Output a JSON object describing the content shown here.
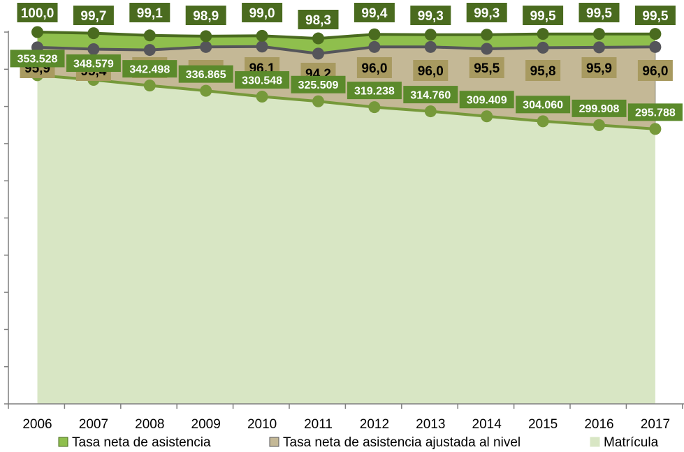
{
  "chart_data": {
    "type": "line",
    "categories": [
      "2006",
      "2007",
      "2008",
      "2009",
      "2010",
      "2011",
      "2012",
      "2013",
      "2014",
      "2015",
      "2016",
      "2017"
    ],
    "series": [
      {
        "name": "Tasa neta de asistencia",
        "axis": "right",
        "values": [
          100.0,
          99.7,
          99.1,
          98.9,
          99.0,
          98.3,
          99.4,
          99.3,
          99.3,
          99.5,
          99.5,
          99.5
        ],
        "labels": [
          "100,0",
          "99,7",
          "99,1",
          "98,9",
          "99,0",
          "98,3",
          "99,4",
          "99,3",
          "99,3",
          "99,5",
          "99,5",
          "99,5"
        ],
        "color": "#4a6b1f",
        "fill": "#8fbf4d",
        "label_bg": "#4a6b1f",
        "label_color": "#ffffff"
      },
      {
        "name": "Tasa neta de asistencia ajustada al nivel",
        "axis": "right",
        "values": [
          95.9,
          95.4,
          95.2,
          96.0,
          96.1,
          94.2,
          96.0,
          96.0,
          95.5,
          95.8,
          95.9,
          96.0
        ],
        "labels": [
          "95,9",
          "95,4",
          "95,2",
          "96,0",
          "96,1",
          "94,2",
          "96,0",
          "96,0",
          "95,5",
          "95,8",
          "95,9",
          "96,0"
        ],
        "color": "#55555a",
        "fill": "#c4b896",
        "label_bg": "#a89a60",
        "label_color": "#000000"
      },
      {
        "name": "Matrícula",
        "axis": "left",
        "values": [
          353528,
          348579,
          342498,
          336865,
          330548,
          325509,
          319238,
          314760,
          309409,
          304060,
          299908,
          295788
        ],
        "labels": [
          "353.528",
          "348.579",
          "342.498",
          "336.865",
          "330.548",
          "325.509",
          "319.238",
          "314.760",
          "309.409",
          "304.060",
          "299.908",
          "295.788"
        ],
        "color": "#76993a",
        "fill": "#d8e6c4",
        "label_bg": "#5b8a2b",
        "label_color": "#ffffff"
      }
    ],
    "left_axis": {
      "ylim": [
        0,
        400000
      ],
      "tick_step": 40000
    },
    "right_axis": {
      "ylim": [
        0,
        100
      ]
    },
    "legend_position": "bottom",
    "grid": false
  }
}
